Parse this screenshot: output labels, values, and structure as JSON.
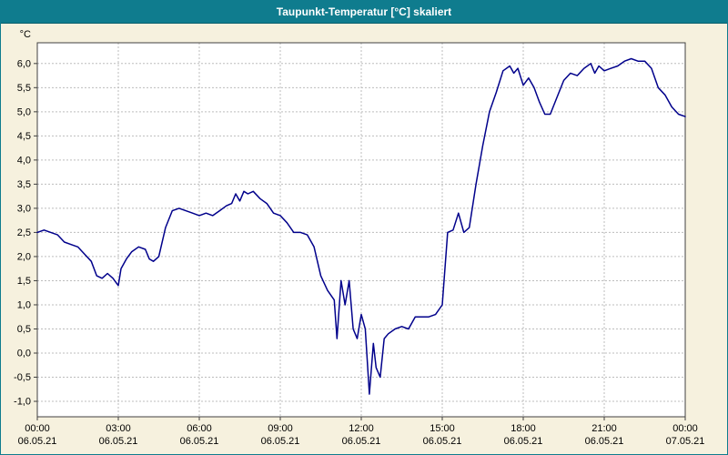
{
  "window": {
    "title": "Taupunkt-Temperatur [°C] skaliert"
  },
  "colors": {
    "titlebar": "#0f7c8e",
    "background": "#f6f1de",
    "plot_bg": "#ffffff",
    "line": "#00008b",
    "grid": "#bdbdbd",
    "frame": "#404040",
    "text": "#000000"
  },
  "chart_data": {
    "type": "line",
    "title": "Taupunkt-Temperatur [°C] skaliert",
    "ylabel": "°C",
    "xlabel": "",
    "xlim": [
      0,
      24
    ],
    "ylim": [
      -1.32,
      6.43
    ],
    "grid": "dashed",
    "legend": "none",
    "y_ticks": [
      {
        "value": 6.0,
        "label": "6,0"
      },
      {
        "value": 5.5,
        "label": "5,5"
      },
      {
        "value": 5.0,
        "label": "5,0"
      },
      {
        "value": 4.5,
        "label": "4,5"
      },
      {
        "value": 4.0,
        "label": "4,0"
      },
      {
        "value": 3.5,
        "label": "3,5"
      },
      {
        "value": 3.0,
        "label": "3,0"
      },
      {
        "value": 2.5,
        "label": "2,5"
      },
      {
        "value": 2.0,
        "label": "2,0"
      },
      {
        "value": 1.5,
        "label": "1,5"
      },
      {
        "value": 1.0,
        "label": "1,0"
      },
      {
        "value": 0.5,
        "label": "0,5"
      },
      {
        "value": 0.0,
        "label": "0,0"
      },
      {
        "value": -0.5,
        "label": "-0,5"
      },
      {
        "value": -1.0,
        "label": "-1,0"
      }
    ],
    "x_ticks": [
      {
        "hour": 0,
        "time": "00:00",
        "date": "06.05.21"
      },
      {
        "hour": 3,
        "time": "03:00",
        "date": "06.05.21"
      },
      {
        "hour": 6,
        "time": "06:00",
        "date": "06.05.21"
      },
      {
        "hour": 9,
        "time": "09:00",
        "date": "06.05.21"
      },
      {
        "hour": 12,
        "time": "12:00",
        "date": "06.05.21"
      },
      {
        "hour": 15,
        "time": "15:00",
        "date": "06.05.21"
      },
      {
        "hour": 18,
        "time": "18:00",
        "date": "06.05.21"
      },
      {
        "hour": 21,
        "time": "21:00",
        "date": "06.05.21"
      },
      {
        "hour": 24,
        "time": "00:00",
        "date": "07.05.21"
      }
    ],
    "series": [
      {
        "name": "Taupunkt-Temperatur",
        "color": "#00008b",
        "points": [
          [
            0,
            2.5
          ],
          [
            0.25,
            2.55
          ],
          [
            0.5,
            2.5
          ],
          [
            0.75,
            2.45
          ],
          [
            1,
            2.3
          ],
          [
            1.25,
            2.25
          ],
          [
            1.5,
            2.2
          ],
          [
            1.75,
            2.05
          ],
          [
            2,
            1.9
          ],
          [
            2.2,
            1.6
          ],
          [
            2.4,
            1.55
          ],
          [
            2.6,
            1.65
          ],
          [
            2.8,
            1.55
          ],
          [
            3,
            1.4
          ],
          [
            3.1,
            1.75
          ],
          [
            3.3,
            1.95
          ],
          [
            3.5,
            2.1
          ],
          [
            3.75,
            2.2
          ],
          [
            4,
            2.15
          ],
          [
            4.15,
            1.95
          ],
          [
            4.3,
            1.9
          ],
          [
            4.5,
            2.0
          ],
          [
            4.75,
            2.6
          ],
          [
            5,
            2.95
          ],
          [
            5.25,
            3.0
          ],
          [
            5.5,
            2.95
          ],
          [
            5.75,
            2.9
          ],
          [
            6,
            2.85
          ],
          [
            6.25,
            2.9
          ],
          [
            6.5,
            2.85
          ],
          [
            6.75,
            2.95
          ],
          [
            7,
            3.05
          ],
          [
            7.2,
            3.1
          ],
          [
            7.35,
            3.3
          ],
          [
            7.5,
            3.15
          ],
          [
            7.65,
            3.35
          ],
          [
            7.8,
            3.3
          ],
          [
            8,
            3.35
          ],
          [
            8.25,
            3.2
          ],
          [
            8.5,
            3.1
          ],
          [
            8.75,
            2.9
          ],
          [
            9,
            2.85
          ],
          [
            9.25,
            2.7
          ],
          [
            9.5,
            2.5
          ],
          [
            9.75,
            2.5
          ],
          [
            10,
            2.45
          ],
          [
            10.25,
            2.2
          ],
          [
            10.5,
            1.6
          ],
          [
            10.75,
            1.3
          ],
          [
            11,
            1.1
          ],
          [
            11.1,
            0.3
          ],
          [
            11.25,
            1.5
          ],
          [
            11.4,
            1.0
          ],
          [
            11.55,
            1.5
          ],
          [
            11.7,
            0.5
          ],
          [
            11.85,
            0.3
          ],
          [
            12,
            0.8
          ],
          [
            12.15,
            0.5
          ],
          [
            12.3,
            -0.85
          ],
          [
            12.45,
            0.2
          ],
          [
            12.55,
            -0.3
          ],
          [
            12.7,
            -0.5
          ],
          [
            12.85,
            0.3
          ],
          [
            13,
            0.4
          ],
          [
            13.25,
            0.5
          ],
          [
            13.5,
            0.55
          ],
          [
            13.75,
            0.5
          ],
          [
            14,
            0.75
          ],
          [
            14.25,
            0.75
          ],
          [
            14.5,
            0.75
          ],
          [
            14.75,
            0.8
          ],
          [
            15,
            1.0
          ],
          [
            15.2,
            2.5
          ],
          [
            15.4,
            2.55
          ],
          [
            15.6,
            2.9
          ],
          [
            15.8,
            2.5
          ],
          [
            16,
            2.6
          ],
          [
            16.25,
            3.5
          ],
          [
            16.5,
            4.3
          ],
          [
            16.75,
            5.0
          ],
          [
            17,
            5.4
          ],
          [
            17.25,
            5.85
          ],
          [
            17.5,
            5.95
          ],
          [
            17.65,
            5.8
          ],
          [
            17.8,
            5.9
          ],
          [
            18,
            5.55
          ],
          [
            18.2,
            5.7
          ],
          [
            18.4,
            5.5
          ],
          [
            18.6,
            5.2
          ],
          [
            18.8,
            4.95
          ],
          [
            19,
            4.95
          ],
          [
            19.25,
            5.3
          ],
          [
            19.5,
            5.65
          ],
          [
            19.75,
            5.8
          ],
          [
            20,
            5.75
          ],
          [
            20.25,
            5.9
          ],
          [
            20.5,
            6.0
          ],
          [
            20.65,
            5.8
          ],
          [
            20.8,
            5.95
          ],
          [
            21,
            5.85
          ],
          [
            21.25,
            5.9
          ],
          [
            21.5,
            5.95
          ],
          [
            21.75,
            6.05
          ],
          [
            22,
            6.1
          ],
          [
            22.25,
            6.05
          ],
          [
            22.5,
            6.05
          ],
          [
            22.75,
            5.9
          ],
          [
            23,
            5.5
          ],
          [
            23.25,
            5.35
          ],
          [
            23.5,
            5.1
          ],
          [
            23.75,
            4.95
          ],
          [
            24,
            4.9
          ]
        ]
      }
    ]
  }
}
